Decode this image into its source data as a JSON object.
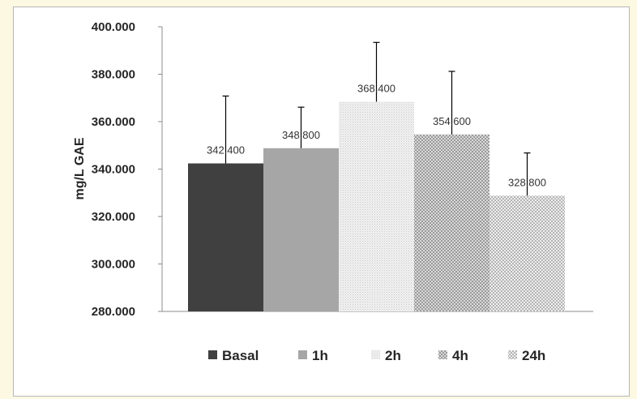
{
  "chart_data": {
    "type": "bar",
    "title": "",
    "xlabel": "",
    "ylabel": "mg/L GAE",
    "ylim": [
      280,
      400
    ],
    "y_ticks": [
      {
        "value": 280,
        "label": "280.000"
      },
      {
        "value": 300,
        "label": "300.000"
      },
      {
        "value": 320,
        "label": "320.000"
      },
      {
        "value": 340,
        "label": "340.000"
      },
      {
        "value": 360,
        "label": "360.000"
      },
      {
        "value": 380,
        "label": "380.000"
      },
      {
        "value": 400,
        "label": "400.000"
      }
    ],
    "categories": [
      "Basal",
      "1h",
      "2h",
      "4h",
      "24h"
    ],
    "values": [
      342.4,
      348.8,
      368.4,
      354.6,
      328.8
    ],
    "value_labels": [
      "342.400",
      "348.800",
      "368.400",
      "354.600",
      "328.800"
    ],
    "error_bars": [
      28.4,
      17.3,
      25.0,
      26.6,
      18.0
    ],
    "legend_position": "bottom",
    "grid": false,
    "series_colors": [
      "#404040",
      "#a6a6a6",
      "pattern-fine-dots",
      "pattern-checker",
      "pattern-checker-light"
    ]
  }
}
